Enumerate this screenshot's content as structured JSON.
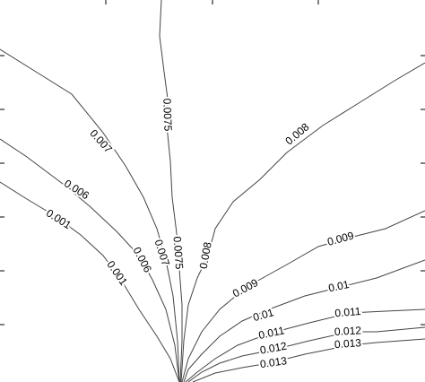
{
  "chart_data": {
    "type": "contour",
    "levels": [
      0.001,
      0.006,
      0.007,
      0.0075,
      0.008,
      0.009,
      0.01,
      0.011,
      0.012,
      0.013
    ],
    "color": "#444444"
  }
}
